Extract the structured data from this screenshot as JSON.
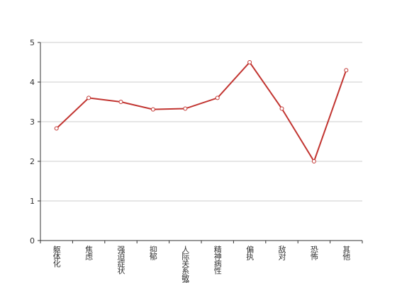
{
  "chart_data": {
    "type": "line",
    "categories": [
      "躯体化",
      "焦虑",
      "强迫症状",
      "抑郁",
      "人际关系敏感",
      "精神病性",
      "偏执",
      "敌对",
      "恐怖",
      "其他"
    ],
    "values": [
      2.83,
      3.6,
      3.5,
      3.31,
      3.33,
      3.6,
      4.5,
      3.33,
      2.0,
      4.3
    ],
    "color": "#c23531",
    "ylim": [
      0,
      5
    ],
    "yticks": [
      0,
      1,
      2,
      3,
      4,
      5
    ],
    "grid": true
  }
}
